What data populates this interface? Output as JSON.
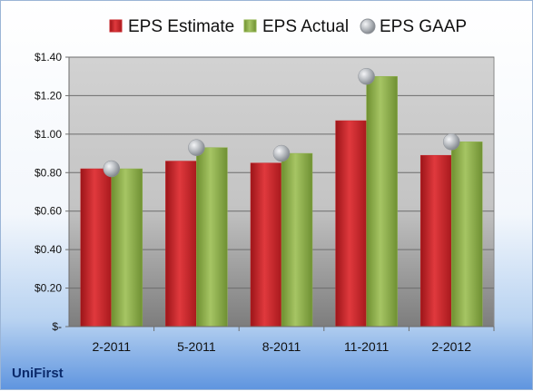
{
  "company": "UniFirst",
  "colors": {
    "estimate": "#c8272b",
    "actual": "#8fb24b",
    "gaap": "#a9adb3"
  },
  "chart_data": {
    "type": "bar",
    "title": "",
    "xlabel": "",
    "ylabel": "",
    "categories": [
      "2-2011",
      "5-2011",
      "8-2011",
      "11-2011",
      "2-2012"
    ],
    "series": [
      {
        "name": "EPS Estimate",
        "kind": "bar",
        "values": [
          0.82,
          0.86,
          0.85,
          1.07,
          0.89
        ]
      },
      {
        "name": "EPS Actual",
        "kind": "bar",
        "values": [
          0.82,
          0.93,
          0.9,
          1.3,
          0.96
        ]
      },
      {
        "name": "EPS GAAP",
        "kind": "marker",
        "values": [
          0.82,
          0.93,
          0.9,
          1.3,
          0.96
        ]
      }
    ],
    "ylim": [
      0,
      1.4
    ],
    "yticks": [
      {
        "value": 0,
        "label": "$-"
      },
      {
        "value": 0.2,
        "label": "$0.20"
      },
      {
        "value": 0.4,
        "label": "$0.40"
      },
      {
        "value": 0.6,
        "label": "$0.60"
      },
      {
        "value": 0.8,
        "label": "$0.80"
      },
      {
        "value": 1.0,
        "label": "$1.00"
      },
      {
        "value": 1.2,
        "label": "$1.20"
      },
      {
        "value": 1.4,
        "label": "$1.40"
      }
    ],
    "grid": true,
    "legend_position": "top"
  }
}
